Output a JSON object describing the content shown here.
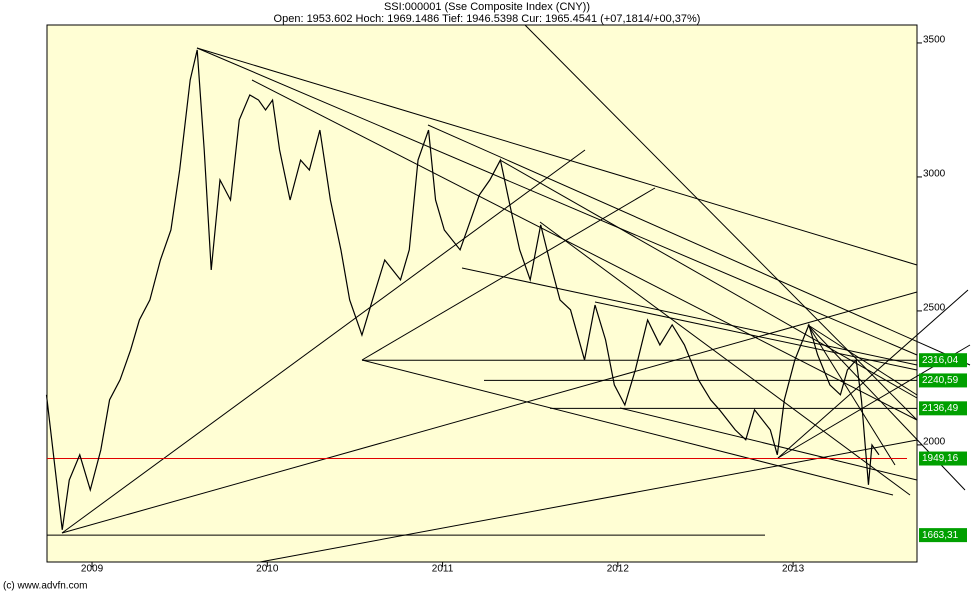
{
  "chart_data": {
    "type": "line",
    "title": "SSI:000001 (Sse Composite Index (CNY))",
    "subtitle": "Open: 1953.602 Hoch: 1969.1486 Tief: 1946.5398 Cur: 1965.4541 (+07,1814/+00,37%)",
    "footer": "(c) www.advfn.com",
    "x": [
      2008.74,
      2008.79,
      2008.83,
      2008.87,
      2008.93,
      2008.99,
      2009.05,
      2009.1,
      2009.16,
      2009.22,
      2009.27,
      2009.33,
      2009.39,
      2009.45,
      2009.5,
      2009.56,
      2009.6,
      2009.64,
      2009.68,
      2009.73,
      2009.79,
      2009.84,
      2009.9,
      2009.95,
      2009.99,
      2010.03,
      2010.07,
      2010.13,
      2010.19,
      2010.24,
      2010.3,
      2010.36,
      2010.42,
      2010.47,
      2010.54,
      2010.6,
      2010.67,
      2010.76,
      2010.81,
      2010.86,
      2010.92,
      2010.96,
      2011.01,
      2011.1,
      2011.16,
      2011.21,
      2011.27,
      2011.33,
      2011.39,
      2011.44,
      2011.5,
      2011.56,
      2011.61,
      2011.67,
      2011.73,
      2011.81,
      2011.87,
      2011.93,
      2011.98,
      2012.04,
      2012.1,
      2012.17,
      2012.24,
      2012.31,
      2012.38,
      2012.46,
      2012.53,
      2012.58,
      2012.67,
      2012.73,
      2012.78,
      2012.87,
      2012.91,
      2012.95,
      2013.01,
      2013.09,
      2013.14,
      2013.21,
      2013.27,
      2013.31,
      2013.36,
      2013.39,
      2013.43,
      2013.45,
      2013.49
    ],
    "series": [
      {
        "color": "#000000",
        "values": [
          2187,
          1907,
          1683,
          1869,
          1963,
          1832,
          1981,
          2168,
          2243,
          2354,
          2466,
          2541,
          2690,
          2802,
          3026,
          3362,
          3474,
          3101,
          2653,
          2989,
          2914,
          3213,
          3306,
          3287,
          3250,
          3287,
          3101,
          2914,
          3063,
          3026,
          3175,
          2914,
          2728,
          2541,
          2410,
          2541,
          2690,
          2616,
          2728,
          3063,
          3175,
          2914,
          2802,
          2728,
          2839,
          2933,
          2989,
          3063,
          2877,
          2728,
          2616,
          2821,
          2690,
          2541,
          2504,
          2317,
          2522,
          2392,
          2224,
          2149,
          2280,
          2466,
          2373,
          2448,
          2373,
          2243,
          2168,
          2131,
          2056,
          2019,
          2131,
          2056,
          1963,
          2168,
          2317,
          2448,
          2336,
          2224,
          2187,
          2280,
          2317,
          2168,
          1851,
          2000,
          1963
        ]
      }
    ],
    "levels": [
      {
        "value": 2316.04,
        "label": "2316,04",
        "color": "#000000"
      },
      {
        "value": 2240.59,
        "label": "2240,59",
        "color": "#000000"
      },
      {
        "value": 2136.49,
        "label": "2136,49",
        "color": "#000000"
      },
      {
        "value": 1949.16,
        "label": "1949,16",
        "color": "#e00000"
      },
      {
        "value": 1663.31,
        "label": "1663,31",
        "color": "#000000"
      }
    ],
    "xlim": [
      2008.743,
      2013.707
    ],
    "xticks": [
      2009,
      2010,
      2011,
      2012,
      2013
    ],
    "ylim": [
      1563,
      3567
    ],
    "yticks": [
      2000,
      2500,
      3000,
      3500
    ]
  }
}
